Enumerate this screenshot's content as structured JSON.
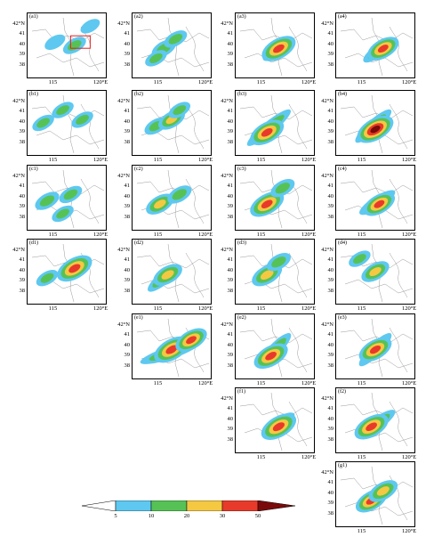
{
  "axis": {
    "lat_labels": [
      "42°N",
      "41",
      "40",
      "39",
      "38"
    ],
    "lon_labels": [
      "115",
      "120°E"
    ]
  },
  "panels": [
    {
      "label": "(a1)",
      "row": 0,
      "col": 0,
      "show_lat": true,
      "show_lon": true,
      "box": true,
      "blobs": [
        [
          0.35,
          0.45,
          0.25
        ],
        [
          0.6,
          0.5,
          0.35
        ],
        [
          0.8,
          0.2,
          0.2
        ]
      ]
    },
    {
      "label": "(a2)",
      "row": 0,
      "col": 1,
      "show_lat": true,
      "show_lon": true,
      "blobs": [
        [
          0.4,
          0.55,
          0.4
        ],
        [
          0.55,
          0.4,
          0.35
        ],
        [
          0.3,
          0.7,
          0.3
        ]
      ]
    },
    {
      "label": "(a3)",
      "row": 0,
      "col": 2,
      "show_lat": true,
      "show_lon": true,
      "band": [
        0.35,
        0.72,
        0.7,
        0.45
      ],
      "blobs": [
        [
          0.55,
          0.55,
          0.8
        ]
      ]
    },
    {
      "label": "(a4)",
      "row": 0,
      "col": 3,
      "show_lat": true,
      "show_lon": true,
      "band": [
        0.35,
        0.75,
        0.75,
        0.4
      ],
      "blobs": [
        [
          0.6,
          0.55,
          0.7
        ]
      ]
    },
    {
      "label": "(b1)",
      "row": 1,
      "col": 0,
      "show_lat": true,
      "show_lon": true,
      "blobs": [
        [
          0.2,
          0.5,
          0.3
        ],
        [
          0.45,
          0.3,
          0.3
        ],
        [
          0.7,
          0.45,
          0.3
        ]
      ]
    },
    {
      "label": "(b2)",
      "row": 1,
      "col": 1,
      "show_lat": true,
      "show_lon": true,
      "blobs": [
        [
          0.3,
          0.55,
          0.35
        ],
        [
          0.5,
          0.45,
          0.5
        ],
        [
          0.6,
          0.3,
          0.3
        ]
      ]
    },
    {
      "label": "(b3)",
      "row": 1,
      "col": 2,
      "show_lat": true,
      "show_lon": true,
      "band": [
        0.15,
        0.85,
        0.7,
        0.3
      ],
      "blobs": [
        [
          0.4,
          0.65,
          0.8
        ]
      ]
    },
    {
      "label": "(b4)",
      "row": 1,
      "col": 3,
      "show_lat": true,
      "show_lon": true,
      "band": [
        0.25,
        0.8,
        0.7,
        0.3
      ],
      "blobs": [
        [
          0.5,
          0.6,
          0.9
        ]
      ]
    },
    {
      "label": "(c1)",
      "row": 2,
      "col": 0,
      "show_lat": true,
      "show_lon": true,
      "blobs": [
        [
          0.25,
          0.55,
          0.4
        ],
        [
          0.55,
          0.45,
          0.35
        ],
        [
          0.45,
          0.75,
          0.3
        ]
      ]
    },
    {
      "label": "(c2)",
      "row": 2,
      "col": 1,
      "show_lat": true,
      "show_lon": true,
      "blobs": [
        [
          0.35,
          0.6,
          0.55
        ],
        [
          0.6,
          0.45,
          0.4
        ]
      ]
    },
    {
      "label": "(c3)",
      "row": 2,
      "col": 2,
      "show_lat": true,
      "show_lon": true,
      "blobs": [
        [
          0.4,
          0.6,
          0.8
        ],
        [
          0.6,
          0.35,
          0.4
        ]
      ]
    },
    {
      "label": "(c4)",
      "row": 2,
      "col": 3,
      "show_lat": true,
      "show_lon": true,
      "band": [
        0.3,
        0.75,
        0.75,
        0.4
      ],
      "blobs": [
        [
          0.55,
          0.6,
          0.7
        ]
      ]
    },
    {
      "label": "(d1)",
      "row": 3,
      "col": 0,
      "show_lat": true,
      "show_lon": true,
      "blobs": [
        [
          0.6,
          0.45,
          0.85
        ],
        [
          0.25,
          0.6,
          0.3
        ]
      ]
    },
    {
      "label": "(d2)",
      "row": 3,
      "col": 1,
      "show_lat": true,
      "show_lon": true,
      "band": [
        0.2,
        0.8,
        0.6,
        0.4
      ],
      "blobs": [
        [
          0.45,
          0.55,
          0.6
        ]
      ]
    },
    {
      "label": "(d3)",
      "row": 3,
      "col": 2,
      "show_lat": true,
      "show_lon": true,
      "blobs": [
        [
          0.4,
          0.55,
          0.65
        ],
        [
          0.55,
          0.35,
          0.4
        ]
      ]
    },
    {
      "label": "(d4)",
      "row": 3,
      "col": 3,
      "show_lat": true,
      "show_lon": true,
      "blobs": [
        [
          0.5,
          0.5,
          0.55
        ],
        [
          0.3,
          0.3,
          0.3
        ]
      ]
    },
    {
      "label": "(e1)",
      "row": 4,
      "col": 1,
      "show_lat": true,
      "show_lon": true,
      "band": [
        0.1,
        0.75,
        0.85,
        0.45
      ],
      "blobs": [
        [
          0.5,
          0.55,
          0.85
        ],
        [
          0.75,
          0.4,
          0.7
        ]
      ]
    },
    {
      "label": "(e2)",
      "row": 4,
      "col": 2,
      "show_lat": true,
      "show_lon": true,
      "band": [
        0.3,
        0.8,
        0.7,
        0.3
      ],
      "blobs": [
        [
          0.45,
          0.65,
          0.8
        ]
      ]
    },
    {
      "label": "(e3)",
      "row": 4,
      "col": 3,
      "show_lat": true,
      "show_lon": true,
      "band": [
        0.3,
        0.8,
        0.7,
        0.3
      ],
      "blobs": [
        [
          0.5,
          0.55,
          0.75
        ]
      ]
    },
    {
      "label": "(f1)",
      "row": 5,
      "col": 2,
      "show_lat": true,
      "show_lon": true,
      "band": [
        0.35,
        0.7,
        0.75,
        0.4
      ],
      "blobs": [
        [
          0.55,
          0.6,
          0.85
        ]
      ]
    },
    {
      "label": "(f2)",
      "row": 5,
      "col": 3,
      "show_lat": true,
      "show_lon": true,
      "band": [
        0.3,
        0.75,
        0.75,
        0.35
      ],
      "blobs": [
        [
          0.45,
          0.6,
          0.8
        ]
      ]
    },
    {
      "label": "(g1)",
      "row": 6,
      "col": 3,
      "show_lat": true,
      "show_lon": true,
      "blobs": [
        [
          0.45,
          0.6,
          0.7
        ],
        [
          0.6,
          0.45,
          0.6
        ]
      ]
    }
  ],
  "colorbar": {
    "ticks": [
      "5",
      "10",
      "20",
      "30",
      "50"
    ],
    "colors": [
      "#5ec8f0",
      "#56c256",
      "#f5c842",
      "#e83a2a",
      "#7a0a0a"
    ]
  }
}
